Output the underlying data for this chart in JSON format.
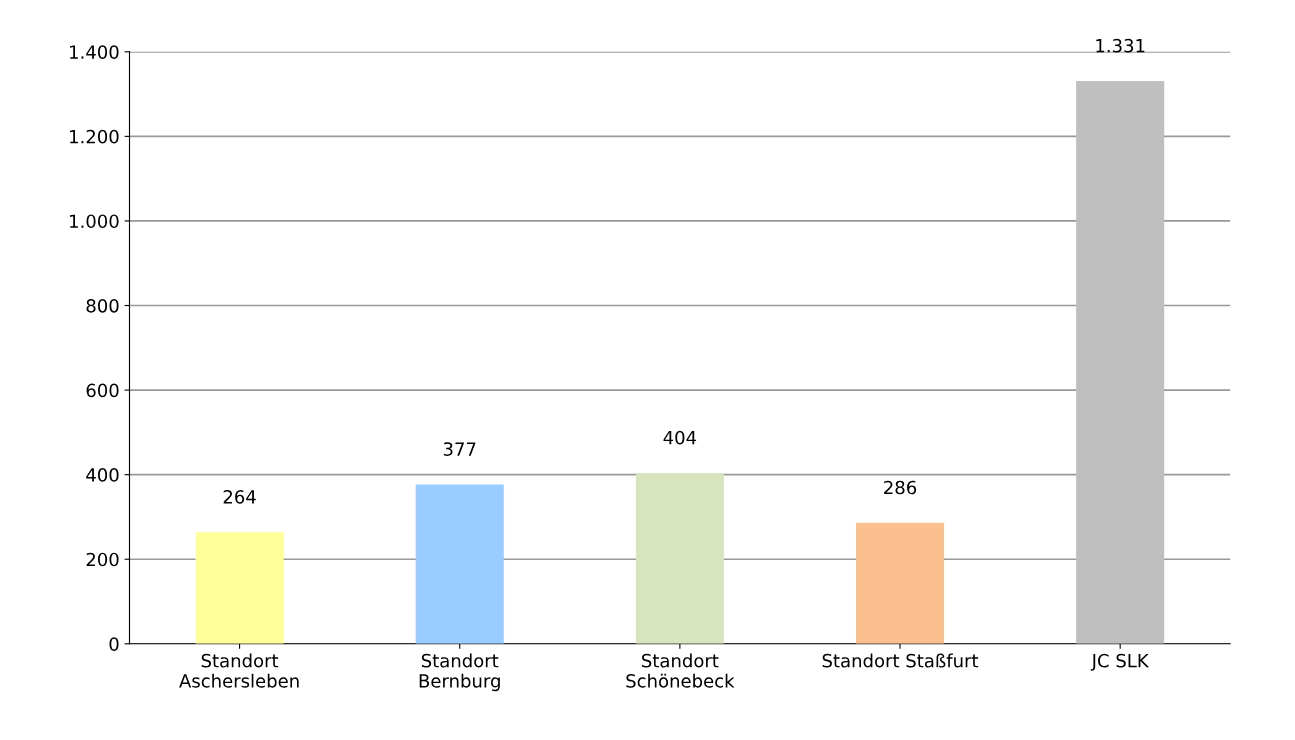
{
  "chart_data": {
    "type": "bar",
    "categories": [
      "Standort\nAschersleben",
      "Standort\nBernburg",
      "Standort\nSchönebeck",
      "Standort Staßfurt",
      "JC SLK"
    ],
    "values": [
      264,
      377,
      404,
      286,
      1331
    ],
    "colors": [
      "#ffff99",
      "#99ccff",
      "#d7e4bd",
      "#fac090",
      "#bfbfbf"
    ],
    "value_labels": [
      "264",
      "377",
      "404",
      "286",
      "1.331"
    ],
    "ylim": [
      0,
      1400
    ],
    "yticks": [
      0,
      200,
      400,
      600,
      800,
      {
        "value": 1000,
        "label": "1.000"
      },
      {
        "value": 1200,
        "label": "1.200"
      },
      {
        "value": 1400,
        "label": "1.400"
      }
    ],
    "grid": "y",
    "legend": false
  }
}
